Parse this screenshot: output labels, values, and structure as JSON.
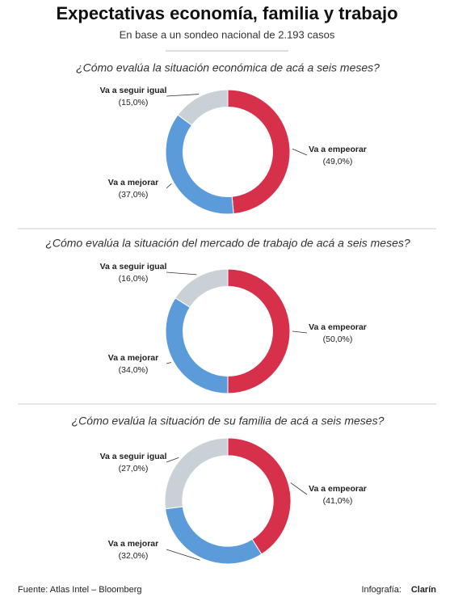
{
  "header": {
    "title": "Expectativas economía, familia y trabajo",
    "subtitle": "En base a un sondeo nacional de 2.193 casos"
  },
  "chart_data": [
    {
      "type": "donut",
      "title": "¿Cómo evalúa la situación económica de acá a seis meses?",
      "categories": [
        "Va a empeorar",
        "Va a mejorar",
        "Va a seguir igual"
      ],
      "values": [
        49,
        37,
        15
      ],
      "value_labels": [
        "(49,0%)",
        "(37,0%)",
        "(15,0%)"
      ],
      "colors": [
        "#d6304a",
        "#5b9bd9",
        "#c9d1d6"
      ]
    },
    {
      "type": "donut",
      "title": "¿Cómo evalúa la situación del mercado de trabajo de acá a seis meses?",
      "categories": [
        "Va a empeorar",
        "Va a mejorar",
        "Va a seguir igual"
      ],
      "values": [
        50,
        34,
        16
      ],
      "value_labels": [
        "(50,0%)",
        "(34,0%)",
        "(16,0%)"
      ],
      "colors": [
        "#d6304a",
        "#5b9bd9",
        "#c9d1d6"
      ]
    },
    {
      "type": "donut",
      "title": "¿Cómo evalúa la situación de su familia de acá a seis meses?",
      "categories": [
        "Va a empeorar",
        "Va a mejorar",
        "Va a seguir igual"
      ],
      "values": [
        41,
        32,
        27
      ],
      "value_labels": [
        "(41,0%)",
        "(32,0%)",
        "(27,0%)"
      ],
      "colors": [
        "#d6304a",
        "#5b9bd9",
        "#c9d1d6"
      ]
    }
  ],
  "footer": {
    "source": "Fuente: Atlas Intel – Bloomberg",
    "credit": "Infografía:",
    "brand": "Clarín"
  }
}
